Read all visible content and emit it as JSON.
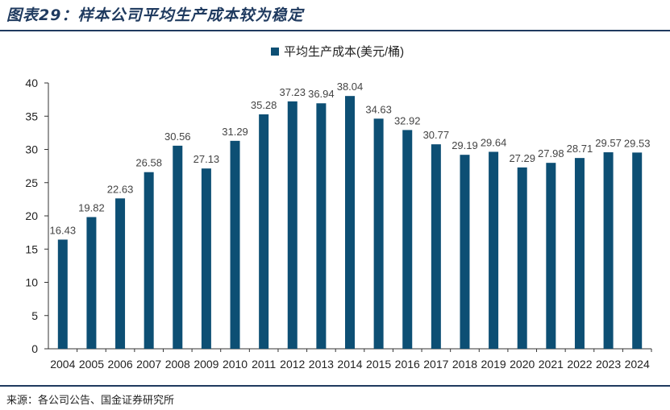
{
  "header": {
    "title": "图表29：样本公司平均生产成本较为稳定"
  },
  "footer": {
    "source": "来源：各公司公告、国金证券研究所"
  },
  "colors": {
    "bar": "#0d4f74",
    "rule": "#1f3a5f"
  },
  "chart_data": {
    "type": "bar",
    "title": "",
    "xlabel": "",
    "ylabel": "",
    "legend_position": "top-center",
    "grid": false,
    "ylim": [
      0,
      40
    ],
    "yticks": [
      0,
      5,
      10,
      15,
      20,
      25,
      30,
      35,
      40
    ],
    "categories": [
      "2004",
      "2005",
      "2006",
      "2007",
      "2008",
      "2009",
      "2010",
      "2011",
      "2012",
      "2013",
      "2014",
      "2015",
      "2016",
      "2017",
      "2018",
      "2019",
      "2020",
      "2021",
      "2022",
      "2023",
      "2024"
    ],
    "series": [
      {
        "name": "平均生产成本(美元/桶)",
        "values": [
          16.43,
          19.82,
          22.63,
          26.58,
          30.56,
          27.13,
          31.29,
          35.28,
          37.23,
          36.94,
          38.04,
          34.63,
          32.92,
          30.77,
          29.19,
          29.64,
          27.29,
          27.98,
          28.71,
          29.57,
          29.53
        ]
      }
    ]
  }
}
